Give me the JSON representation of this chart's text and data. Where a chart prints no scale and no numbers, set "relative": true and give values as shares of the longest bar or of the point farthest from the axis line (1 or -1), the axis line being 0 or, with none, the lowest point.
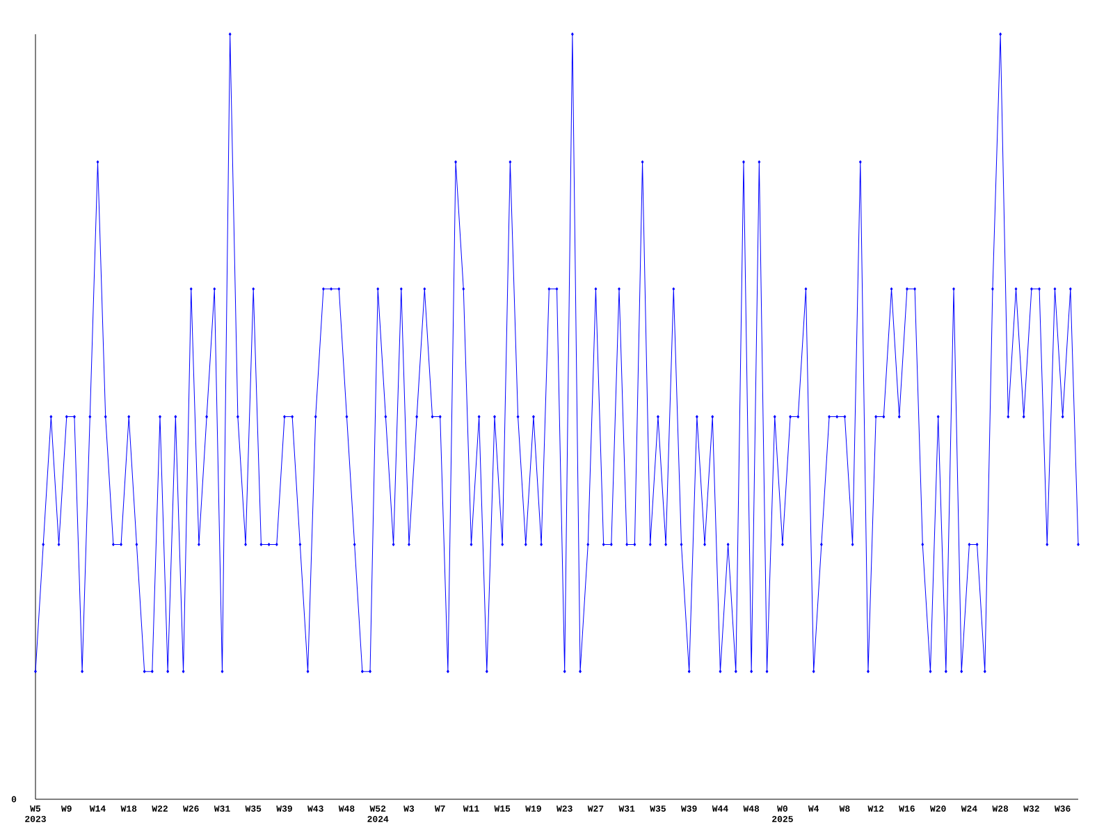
{
  "chart_data": {
    "type": "line",
    "relative": true,
    "color": "#0000ff",
    "marker": "diamond",
    "grid": false,
    "annotations": [
      "0"
    ],
    "categories": [
      "W5 2023",
      null,
      null,
      null,
      "W9",
      null,
      null,
      null,
      "W14",
      null,
      null,
      null,
      "W18",
      null,
      null,
      null,
      "W22",
      null,
      null,
      null,
      "W26",
      null,
      null,
      null,
      "W31",
      null,
      null,
      null,
      "W35",
      null,
      null,
      null,
      "W39",
      null,
      null,
      null,
      "W43",
      null,
      null,
      null,
      "W48",
      null,
      null,
      null,
      "W52 2024",
      null,
      null,
      null,
      "W3",
      null,
      null,
      null,
      "W7",
      null,
      null,
      null,
      "W11",
      null,
      null,
      null,
      "W15",
      null,
      null,
      null,
      "W19",
      null,
      null,
      null,
      "W23",
      null,
      null,
      null,
      "W27",
      null,
      null,
      null,
      "W31",
      null,
      null,
      null,
      "W35",
      null,
      null,
      null,
      "W39",
      null,
      null,
      null,
      "W44",
      null,
      null,
      null,
      "W48",
      null,
      null,
      null,
      "W0 2025",
      null,
      null,
      null,
      "W4",
      null,
      null,
      null,
      "W8",
      null,
      null,
      null,
      "W12",
      null,
      null,
      null,
      "W16",
      null,
      null,
      null,
      "W20",
      null,
      null,
      null,
      "W24",
      null,
      null,
      null,
      "W28",
      null,
      null,
      null,
      "W32",
      null,
      null,
      null,
      "W36",
      null,
      null
    ],
    "values": [
      0.167,
      0.333,
      0.5,
      0.333,
      0.5,
      0.5,
      0.167,
      0.5,
      0.833,
      0.5,
      0.333,
      0.333,
      0.5,
      0.333,
      0.167,
      0.167,
      0.5,
      0.167,
      0.5,
      0.167,
      0.667,
      0.333,
      0.5,
      0.667,
      0.167,
      1,
      0.5,
      0.333,
      0.667,
      0.333,
      0.333,
      0.333,
      0.5,
      0.5,
      0.333,
      0.167,
      0.5,
      0.667,
      0.667,
      0.667,
      0.5,
      0.333,
      0.167,
      0.167,
      0.667,
      0.5,
      0.333,
      0.667,
      0.333,
      0.5,
      0.667,
      0.5,
      0.5,
      0.167,
      0.833,
      0.667,
      0.333,
      0.5,
      0.167,
      0.5,
      0.333,
      0.833,
      0.5,
      0.333,
      0.5,
      0.333,
      0.667,
      0.667,
      0.167,
      1,
      0.167,
      0.333,
      0.667,
      0.333,
      0.333,
      0.667,
      0.333,
      0.333,
      0.833,
      0.333,
      0.5,
      0.333,
      0.667,
      0.333,
      0.167,
      0.5,
      0.333,
      0.5,
      0.167,
      0.333,
      0.167,
      0.833,
      0.167,
      0.833,
      0.167,
      0.5,
      0.333,
      0.5,
      0.5,
      0.667,
      0.167,
      0.333,
      0.5,
      0.5,
      0.5,
      0.333,
      0.833,
      0.167,
      0.5,
      0.5,
      0.667,
      0.5,
      0.667,
      0.667,
      0.333,
      0.167,
      0.5,
      0.167,
      0.667,
      0.167,
      0.333,
      0.333,
      0.167,
      0.667,
      1,
      0.5,
      0.667,
      0.5,
      0.667,
      0.667,
      0.333,
      0.667,
      0.5,
      0.667,
      0.333
    ]
  }
}
